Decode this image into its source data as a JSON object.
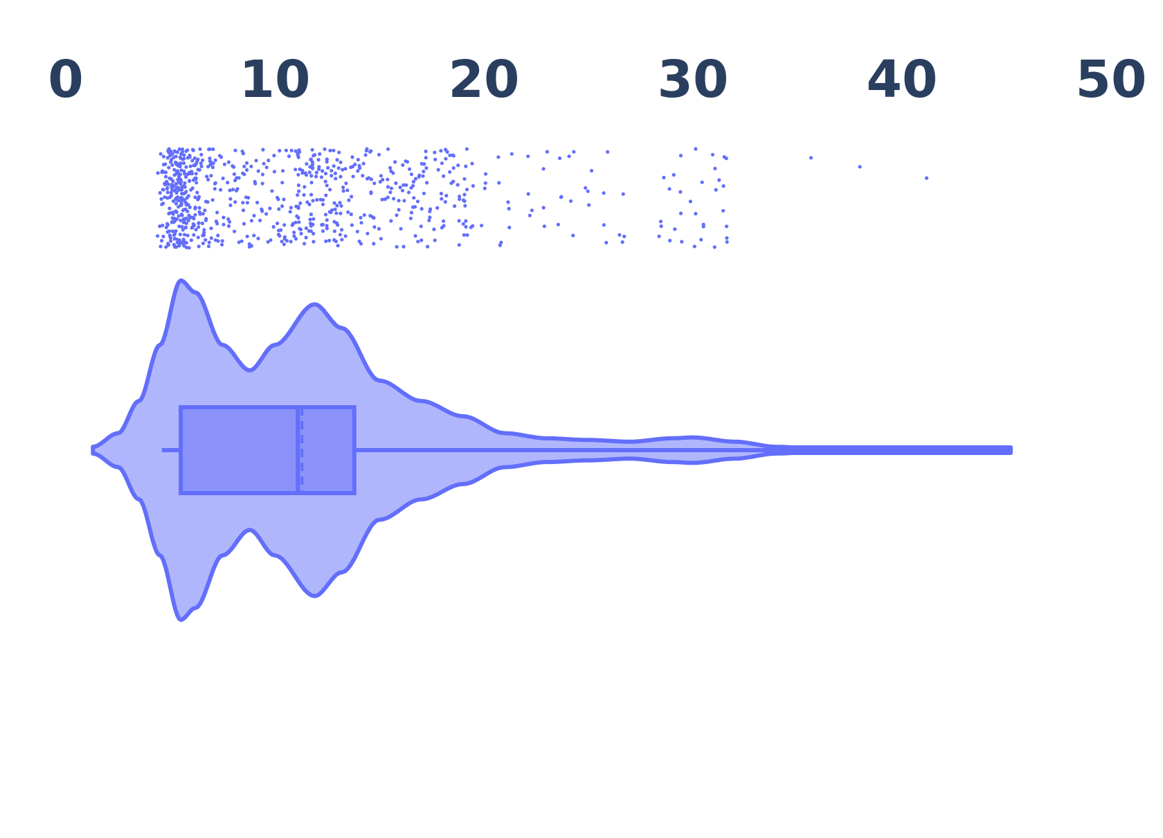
{
  "chart_data": {
    "type": "violin",
    "orientation": "horizontal",
    "title": "",
    "xlabel": "",
    "ylabel": "",
    "xlim": [
      0,
      50
    ],
    "x_ticks": [
      "0",
      "10",
      "20",
      "30",
      "40",
      "50"
    ],
    "x_axis_position": "top",
    "grid": false,
    "legend": "none",
    "colors": {
      "line": "#636efa",
      "fill": "#b0b6fc",
      "box_fill": "#8b93fb",
      "tick_text": "#2a3f5f"
    },
    "series": [
      {
        "box": {
          "min": 4.6,
          "q1": 5.5,
          "median": 11.1,
          "q3": 13.8,
          "upper_fence": 25.9,
          "notch_mean": 11.3
        },
        "kde_range": [
          1.3,
          45.2
        ],
        "density": [
          {
            "x": 1.3,
            "d": 0.02
          },
          {
            "x": 2.5,
            "d": 0.1
          },
          {
            "x": 3.5,
            "d": 0.29
          },
          {
            "x": 4.5,
            "d": 0.62
          },
          {
            "x": 5.5,
            "d": 1.0
          },
          {
            "x": 6.2,
            "d": 0.93
          },
          {
            "x": 7.5,
            "d": 0.62
          },
          {
            "x": 8.8,
            "d": 0.47
          },
          {
            "x": 10.0,
            "d": 0.62
          },
          {
            "x": 11.9,
            "d": 0.86
          },
          {
            "x": 13.2,
            "d": 0.72
          },
          {
            "x": 15.0,
            "d": 0.41
          },
          {
            "x": 17.0,
            "d": 0.29
          },
          {
            "x": 19.0,
            "d": 0.2
          },
          {
            "x": 21.0,
            "d": 0.1
          },
          {
            "x": 23.0,
            "d": 0.07
          },
          {
            "x": 25.0,
            "d": 0.06
          },
          {
            "x": 27.0,
            "d": 0.05
          },
          {
            "x": 29.0,
            "d": 0.07
          },
          {
            "x": 30.0,
            "d": 0.075
          },
          {
            "x": 32.0,
            "d": 0.05
          },
          {
            "x": 34.0,
            "d": 0.02
          },
          {
            "x": 36.0,
            "d": 0.008
          },
          {
            "x": 45.2,
            "d": 0.004
          }
        ],
        "points": [
          4.6,
          4.7,
          4.8,
          4.9,
          5.0,
          5.0,
          5.1,
          5.1,
          5.2,
          5.2,
          5.3,
          5.3,
          5.3,
          5.4,
          5.4,
          5.5,
          5.5,
          5.5,
          5.6,
          5.6,
          5.7,
          5.7,
          5.8,
          5.8,
          5.9,
          6.0,
          6.0,
          6.1,
          6.2,
          6.3,
          6.4,
          6.5,
          6.6,
          6.8,
          7.0,
          7.2,
          7.4,
          7.7,
          8.0,
          8.3,
          8.6,
          8.9,
          9.2,
          9.6,
          10.0,
          10.3,
          10.6,
          10.9,
          11.0,
          11.2,
          11.3,
          11.5,
          11.6,
          11.8,
          12.0,
          12.2,
          12.3,
          12.5,
          12.7,
          12.9,
          13.1,
          13.3,
          13.6,
          13.9,
          14.2,
          14.5,
          14.8,
          15.2,
          15.6,
          16.0,
          16.3,
          16.6,
          16.9,
          17.2,
          17.6,
          18.0,
          18.3,
          18.6,
          19.0,
          19.3,
          20.0,
          20.7,
          21.3,
          22.2,
          22.9,
          23.6,
          24.2,
          25.0,
          25.8,
          26.6,
          28.5,
          29.0,
          29.5,
          30.0,
          30.5,
          31.0,
          31.4,
          31.7,
          35.6,
          38.0,
          41.3
        ]
      }
    ]
  }
}
